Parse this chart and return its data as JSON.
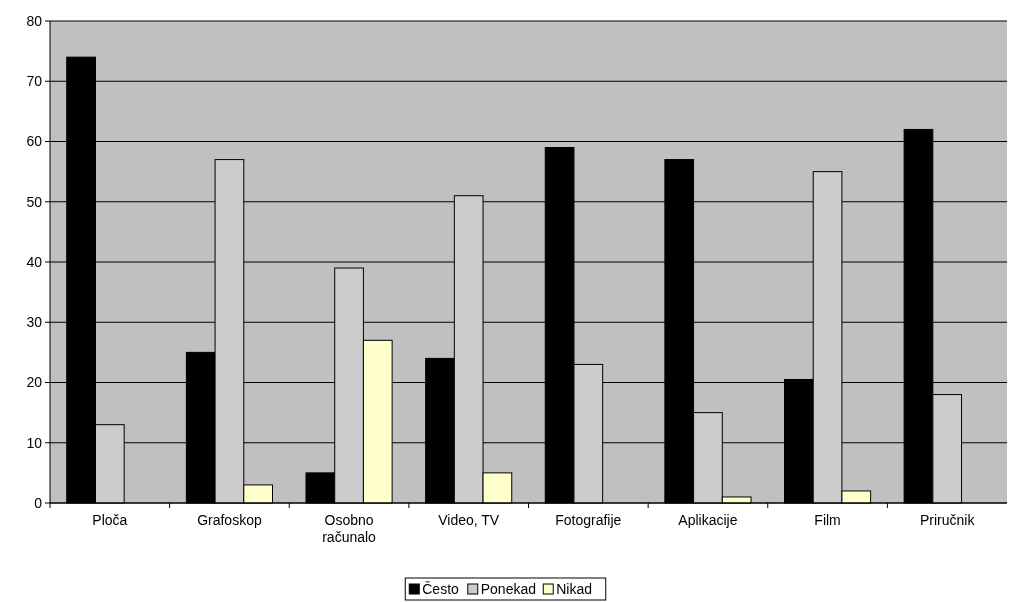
{
  "chart_data": {
    "type": "bar",
    "categories": [
      "Ploča",
      "Grafoskop",
      "Osobno računalo",
      "Video, TV",
      "Fotografije",
      "Aplikacije",
      "Film",
      "Priručnik"
    ],
    "series": [
      {
        "name": "Često",
        "color": "#000000",
        "values": [
          74,
          25,
          5,
          24,
          59,
          57,
          20.5,
          62
        ]
      },
      {
        "name": "Ponekad",
        "color": "#cccccc",
        "values": [
          13,
          57,
          39,
          51,
          23,
          15,
          55,
          18
        ]
      },
      {
        "name": "Nikad",
        "color": "#ffffcc",
        "values": [
          0,
          3,
          27,
          5,
          0,
          1,
          2,
          0
        ]
      }
    ],
    "ylim": [
      0,
      80
    ],
    "yticks": [
      0,
      10,
      20,
      30,
      40,
      50,
      60,
      70,
      80
    ],
    "grid": "y",
    "legend": "bottom"
  }
}
